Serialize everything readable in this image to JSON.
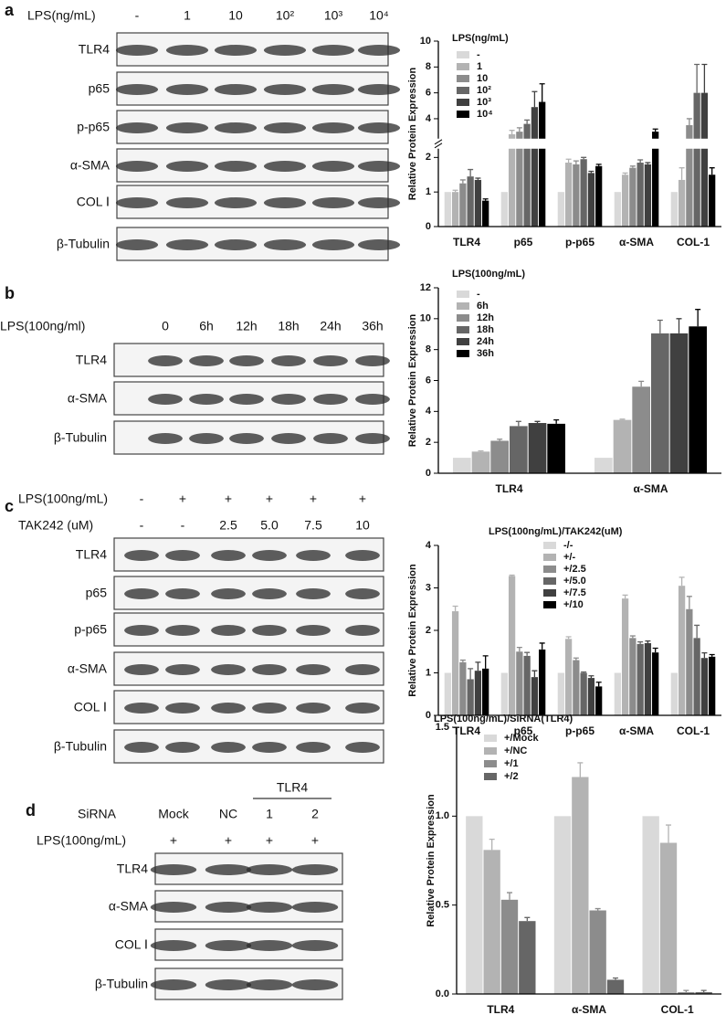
{
  "blots": [
    {
      "letter": "a",
      "headers": [
        {
          "label": "LPS(ng/mL)",
          "lanes": [
            "-",
            "1",
            "10",
            "10²",
            "10³",
            "10⁴"
          ]
        }
      ],
      "rows": [
        "TLR4",
        "p65",
        "p-p65",
        "α-SMA",
        "COL Ⅰ",
        "β-Tubulin"
      ]
    },
    {
      "letter": "b",
      "headers": [
        {
          "label": "LPS(100ng/ml)",
          "lanes": [
            "0",
            "6h",
            "12h",
            "18h",
            "24h",
            "36h"
          ]
        }
      ],
      "rows": [
        "TLR4",
        "α-SMA",
        "β-Tubulin"
      ]
    },
    {
      "letter": "c",
      "headers": [
        {
          "label": "LPS(100ng/mL)",
          "lanes": [
            "-",
            "+",
            "+",
            "+",
            "+",
            "+"
          ]
        },
        {
          "label": "TAK242 (uM)",
          "lanes": [
            "-",
            "-",
            "2.5",
            "5.0",
            "7.5",
            "10"
          ]
        }
      ],
      "rows": [
        "TLR4",
        "p65",
        "p-p65",
        "α-SMA",
        "COL Ⅰ",
        "β-Tubulin"
      ]
    },
    {
      "letter": "d",
      "group": "TLR4",
      "headers": [
        {
          "label": "SiRNA",
          "lanes": [
            "Mock",
            "NC",
            "1",
            "2"
          ]
        },
        {
          "label": "LPS(100ng/mL)",
          "lanes": [
            "+",
            "+",
            "+",
            "+"
          ]
        }
      ],
      "rows": [
        "TLR4",
        "α-SMA",
        "COL Ⅰ",
        "β-Tubulin"
      ]
    }
  ],
  "chart_data": [
    {
      "type": "bar",
      "y_label": "Relative Protein Expression",
      "legend_title": "LPS(ng/mL)",
      "categories": [
        "TLR4",
        "p65",
        "p-p65",
        "α-SMA",
        "COL-1"
      ],
      "ylim": [
        0,
        10
      ],
      "ybreak": [
        2.2,
        2.6
      ],
      "yticks": [
        0,
        1,
        2,
        4,
        6,
        8,
        10
      ],
      "series": [
        {
          "name": "-",
          "color": "#d9d9d9",
          "values": [
            1,
            1,
            1,
            1,
            1
          ],
          "errors": [
            0,
            0,
            0,
            0,
            0
          ]
        },
        {
          "name": "1",
          "color": "#b3b3b3",
          "values": [
            1,
            2.8,
            1.85,
            1.5,
            1.35
          ],
          "errors": [
            0.05,
            0.3,
            0.1,
            0.05,
            0.35
          ]
        },
        {
          "name": "10",
          "color": "#8c8c8c",
          "values": [
            1.25,
            3.0,
            1.8,
            1.7,
            3.5
          ],
          "errors": [
            0.1,
            0.3,
            0.1,
            0.05,
            0.5
          ]
        },
        {
          "name": "10²",
          "color": "#666666",
          "values": [
            1.45,
            3.6,
            1.95,
            1.85,
            6.0
          ],
          "errors": [
            0.2,
            0.3,
            0.05,
            0.08,
            2.2
          ]
        },
        {
          "name": "10³",
          "color": "#404040",
          "values": [
            1.35,
            4.9,
            1.55,
            1.8,
            6.0
          ],
          "errors": [
            0.05,
            1.2,
            0.05,
            0.05,
            2.2
          ]
        },
        {
          "name": "10⁴",
          "color": "#000000",
          "values": [
            0.75,
            5.3,
            1.75,
            3.0,
            1.5
          ],
          "errors": [
            0.05,
            1.4,
            0.05,
            0.2,
            0.2
          ]
        }
      ]
    },
    {
      "type": "bar",
      "y_label": "Relative Protein Expression",
      "legend_title": "LPS(100ng/mL)",
      "categories": [
        "TLR4",
        "α-SMA"
      ],
      "ylim": [
        0,
        12
      ],
      "yticks": [
        0,
        2,
        4,
        6,
        8,
        10,
        12
      ],
      "series": [
        {
          "name": "-",
          "color": "#d9d9d9",
          "values": [
            1,
            1
          ],
          "errors": [
            0,
            0
          ]
        },
        {
          "name": "6h",
          "color": "#b3b3b3",
          "values": [
            1.4,
            3.45
          ],
          "errors": [
            0.05,
            0.05
          ]
        },
        {
          "name": "12h",
          "color": "#8c8c8c",
          "values": [
            2.1,
            5.6
          ],
          "errors": [
            0.1,
            0.35
          ]
        },
        {
          "name": "18h",
          "color": "#666666",
          "values": [
            3.05,
            9.05
          ],
          "errors": [
            0.3,
            0.85
          ]
        },
        {
          "name": "24h",
          "color": "#404040",
          "values": [
            3.25,
            9.05
          ],
          "errors": [
            0.1,
            0.95
          ]
        },
        {
          "name": "36h",
          "color": "#000000",
          "values": [
            3.2,
            9.5
          ],
          "errors": [
            0.25,
            1.1
          ]
        }
      ]
    },
    {
      "type": "bar",
      "y_label": "Relative Protein Expression",
      "legend_title": "LPS(100ng/mL)/TAK242(uM)",
      "categories": [
        "TLR4",
        "p65",
        "p-p65",
        "α-SMA",
        "COL-1"
      ],
      "ylim": [
        0,
        4
      ],
      "yticks": [
        0,
        1,
        2,
        3,
        4
      ],
      "series": [
        {
          "name": "-/-",
          "color": "#d9d9d9",
          "values": [
            1,
            1,
            1,
            1,
            1
          ],
          "errors": [
            0,
            0,
            0,
            0,
            0
          ]
        },
        {
          "name": "+/-",
          "color": "#b3b3b3",
          "values": [
            2.45,
            3.28,
            1.8,
            2.75,
            3.05
          ],
          "errors": [
            0.12,
            0.02,
            0.05,
            0.08,
            0.2
          ]
        },
        {
          "name": "+/2.5",
          "color": "#8c8c8c",
          "values": [
            1.25,
            1.5,
            1.3,
            1.82,
            2.5
          ],
          "errors": [
            0.05,
            0.1,
            0.05,
            0.05,
            0.3
          ]
        },
        {
          "name": "+/5.0",
          "color": "#666666",
          "values": [
            0.85,
            1.4,
            1.0,
            1.68,
            1.82
          ],
          "errors": [
            0.25,
            0.08,
            0.02,
            0.05,
            0.3
          ]
        },
        {
          "name": "+/7.5",
          "color": "#404040",
          "values": [
            1.05,
            0.9,
            0.88,
            1.7,
            1.35
          ],
          "errors": [
            0.2,
            0.15,
            0.05,
            0.05,
            0.12
          ]
        },
        {
          "name": "+/10",
          "color": "#000000",
          "values": [
            1.1,
            1.55,
            0.68,
            1.48,
            1.38
          ],
          "errors": [
            0.3,
            0.15,
            0.1,
            0.1,
            0.05
          ]
        }
      ]
    },
    {
      "type": "bar",
      "y_label": "Relative Protein Expression",
      "legend_title": "LPS(100ng/mL)/SiRNA(TLR4)",
      "categories": [
        "TLR4",
        "α-SMA",
        "COL-1"
      ],
      "ylim": [
        0,
        1.5
      ],
      "yticks": [
        {
          "value": 0,
          "label": "0.0"
        },
        0.5,
        {
          "value": 1,
          "label": "1.0"
        },
        1.5
      ],
      "series": [
        {
          "name": "+/Mock",
          "color": "#d9d9d9",
          "values": [
            1,
            1,
            1
          ],
          "errors": [
            0,
            0,
            0
          ]
        },
        {
          "name": "+/NC",
          "color": "#b3b3b3",
          "values": [
            0.81,
            1.22,
            0.85
          ],
          "errors": [
            0.06,
            0.08,
            0.1
          ]
        },
        {
          "name": "+/1",
          "color": "#8c8c8c",
          "values": [
            0.53,
            0.47,
            0.01
          ],
          "errors": [
            0.04,
            0.01,
            0.01
          ]
        },
        {
          "name": "+/2",
          "color": "#666666",
          "values": [
            0.41,
            0.08,
            0.01
          ],
          "errors": [
            0.02,
            0.01,
            0.01
          ]
        }
      ]
    }
  ]
}
